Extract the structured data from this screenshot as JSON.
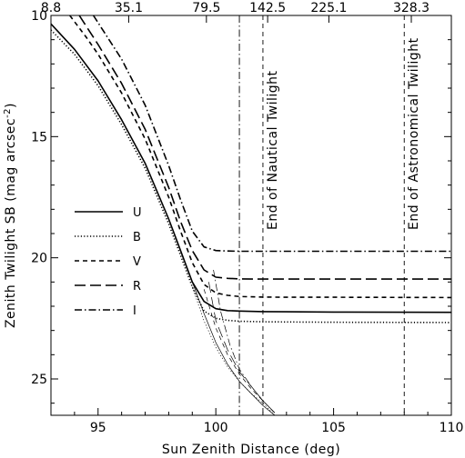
{
  "chart_data": {
    "type": "line",
    "xlabel": "Sun Zenith Distance (deg)",
    "ylabel": "Zenith Twilight SB (mag arcsec",
    "ylabel_sup": "-2",
    "ylabel_close": ")",
    "xlim": [
      93,
      110
    ],
    "ylim": [
      26.5,
      10
    ],
    "x_ticks": [
      95,
      100,
      105,
      110
    ],
    "x_tick_labels": [
      "95",
      "100",
      "105",
      "110"
    ],
    "y_ticks": [
      10,
      15,
      20,
      25
    ],
    "y_tick_labels": [
      "10",
      "15",
      "20",
      "25"
    ],
    "top_ticks": [
      {
        "x": 93.0,
        "label": "8.8"
      },
      {
        "x": 96.3,
        "label": "35.1"
      },
      {
        "x": 99.6,
        "label": "79.5"
      },
      {
        "x": 102.2,
        "label": "142.5"
      },
      {
        "x": 104.8,
        "label": "225.1"
      },
      {
        "x": 108.3,
        "label": "328.3"
      }
    ],
    "legend_position": "left",
    "vlines": [
      {
        "x": 101,
        "style": "dashdot",
        "label": ""
      },
      {
        "x": 102,
        "style": "dashed",
        "label": "End of Nautical Twilight"
      },
      {
        "x": 108,
        "style": "dashed",
        "label": "End of Astronomical Twilight"
      }
    ],
    "series": [
      {
        "name": "U",
        "style": "solid",
        "x": [
          93,
          94,
          95,
          96,
          97,
          98,
          98.5,
          99,
          99.5,
          100,
          100.5,
          101,
          102,
          103,
          105,
          110
        ],
        "y": [
          10.35,
          11.4,
          12.7,
          14.3,
          16.1,
          18.4,
          19.7,
          21.0,
          21.8,
          22.1,
          22.18,
          22.2,
          22.22,
          22.23,
          22.24,
          22.25
        ],
        "faint_x": [
          99.0,
          99.5,
          100,
          100.5,
          101,
          101.5,
          102,
          102.5
        ],
        "faint_y": [
          21.0,
          22.3,
          23.5,
          24.4,
          25.1,
          25.6,
          26.1,
          26.5
        ]
      },
      {
        "name": "B",
        "style": "dotted",
        "x": [
          93,
          94,
          95,
          96,
          97,
          98,
          98.5,
          99,
          99.5,
          100,
          100.5,
          101,
          102,
          103,
          105,
          110
        ],
        "y": [
          10.6,
          11.6,
          12.9,
          14.5,
          16.3,
          18.6,
          19.9,
          21.2,
          22.2,
          22.5,
          22.58,
          22.62,
          22.64,
          22.65,
          22.66,
          22.67
        ],
        "faint_x": [
          99.0,
          99.5,
          100,
          100.5,
          101,
          101.5,
          102,
          102.5
        ],
        "faint_y": [
          21.2,
          22.6,
          23.7,
          24.5,
          25.1,
          25.6,
          26.0,
          26.5
        ]
      },
      {
        "name": "V",
        "style": "dashed",
        "x": [
          93.8,
          94.5,
          95,
          96,
          97,
          98,
          98.5,
          99,
          99.5,
          100,
          100.5,
          101,
          102,
          103,
          105,
          110
        ],
        "y": [
          10.0,
          10.9,
          11.6,
          13.2,
          15.1,
          17.5,
          18.9,
          20.2,
          21.1,
          21.45,
          21.55,
          21.6,
          21.62,
          21.63,
          21.63,
          21.64
        ],
        "faint_x": [
          99.5,
          100,
          100.5,
          101,
          101.5,
          102,
          102.5
        ],
        "faint_y": [
          21.3,
          22.9,
          24.0,
          24.8,
          25.4,
          25.9,
          26.4
        ]
      },
      {
        "name": "R",
        "style": "longdash",
        "x": [
          94.2,
          95,
          96,
          97,
          98,
          98.5,
          99,
          99.5,
          100,
          100.5,
          101,
          102,
          103,
          105,
          110
        ],
        "y": [
          10.0,
          11.2,
          12.8,
          14.7,
          17.1,
          18.5,
          19.7,
          20.5,
          20.8,
          20.85,
          20.87,
          20.88,
          20.88,
          20.88,
          20.88
        ],
        "faint_x": [
          99.7,
          100,
          100.5,
          101,
          101.5,
          102,
          102.5
        ],
        "faint_y": [
          21.0,
          22.6,
          23.8,
          24.7,
          25.3,
          25.9,
          26.4
        ]
      },
      {
        "name": "I",
        "style": "dashdot",
        "x": [
          94.8,
          95,
          96,
          97,
          98,
          98.5,
          99,
          99.5,
          100,
          100.5,
          101,
          102,
          103,
          105,
          110
        ],
        "y": [
          10.0,
          10.3,
          11.8,
          13.7,
          16.2,
          17.6,
          18.9,
          19.55,
          19.7,
          19.72,
          19.73,
          19.73,
          19.73,
          19.73,
          19.73
        ],
        "faint_x": [
          99.9,
          100.2,
          100.6,
          101,
          101.5,
          102,
          102.5
        ],
        "faint_y": [
          20.5,
          22.2,
          23.6,
          24.6,
          25.3,
          25.9,
          26.4
        ]
      }
    ]
  }
}
